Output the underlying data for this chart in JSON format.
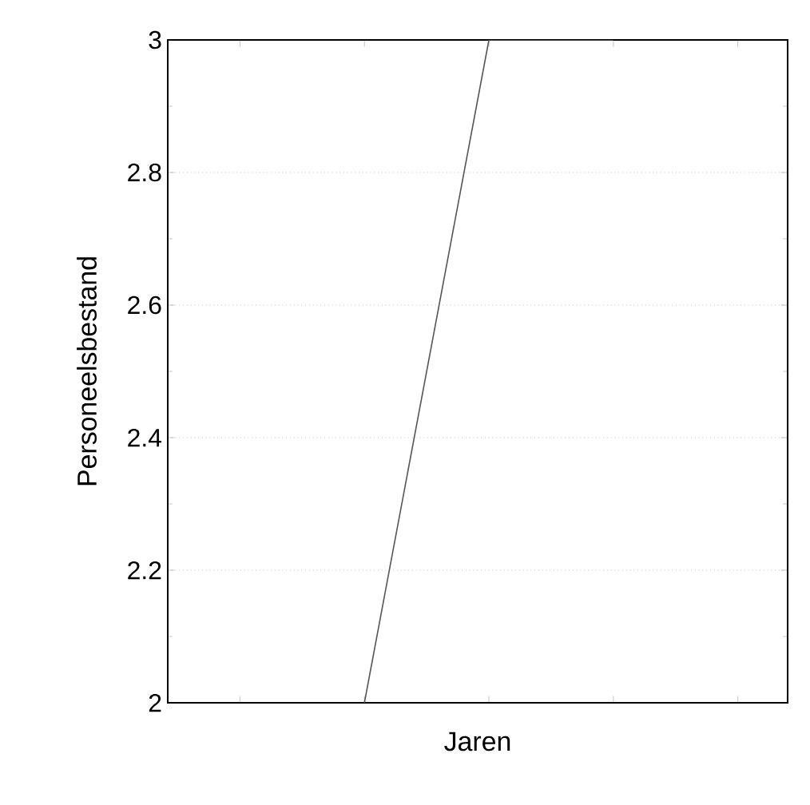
{
  "chart_data": {
    "type": "line",
    "xlabel": "Jaren",
    "ylabel": "Personeelsbestand",
    "categories": [
      null,
      null,
      null,
      null,
      null
    ],
    "values": [
      null,
      2,
      3,
      3,
      null
    ],
    "color": "#555555",
    "ylim": [
      2,
      3
    ],
    "yticks": [
      2,
      2.2,
      2.4,
      2.6,
      2.8,
      3
    ],
    "grid": "y",
    "marker": "none",
    "line_style": "solid"
  }
}
